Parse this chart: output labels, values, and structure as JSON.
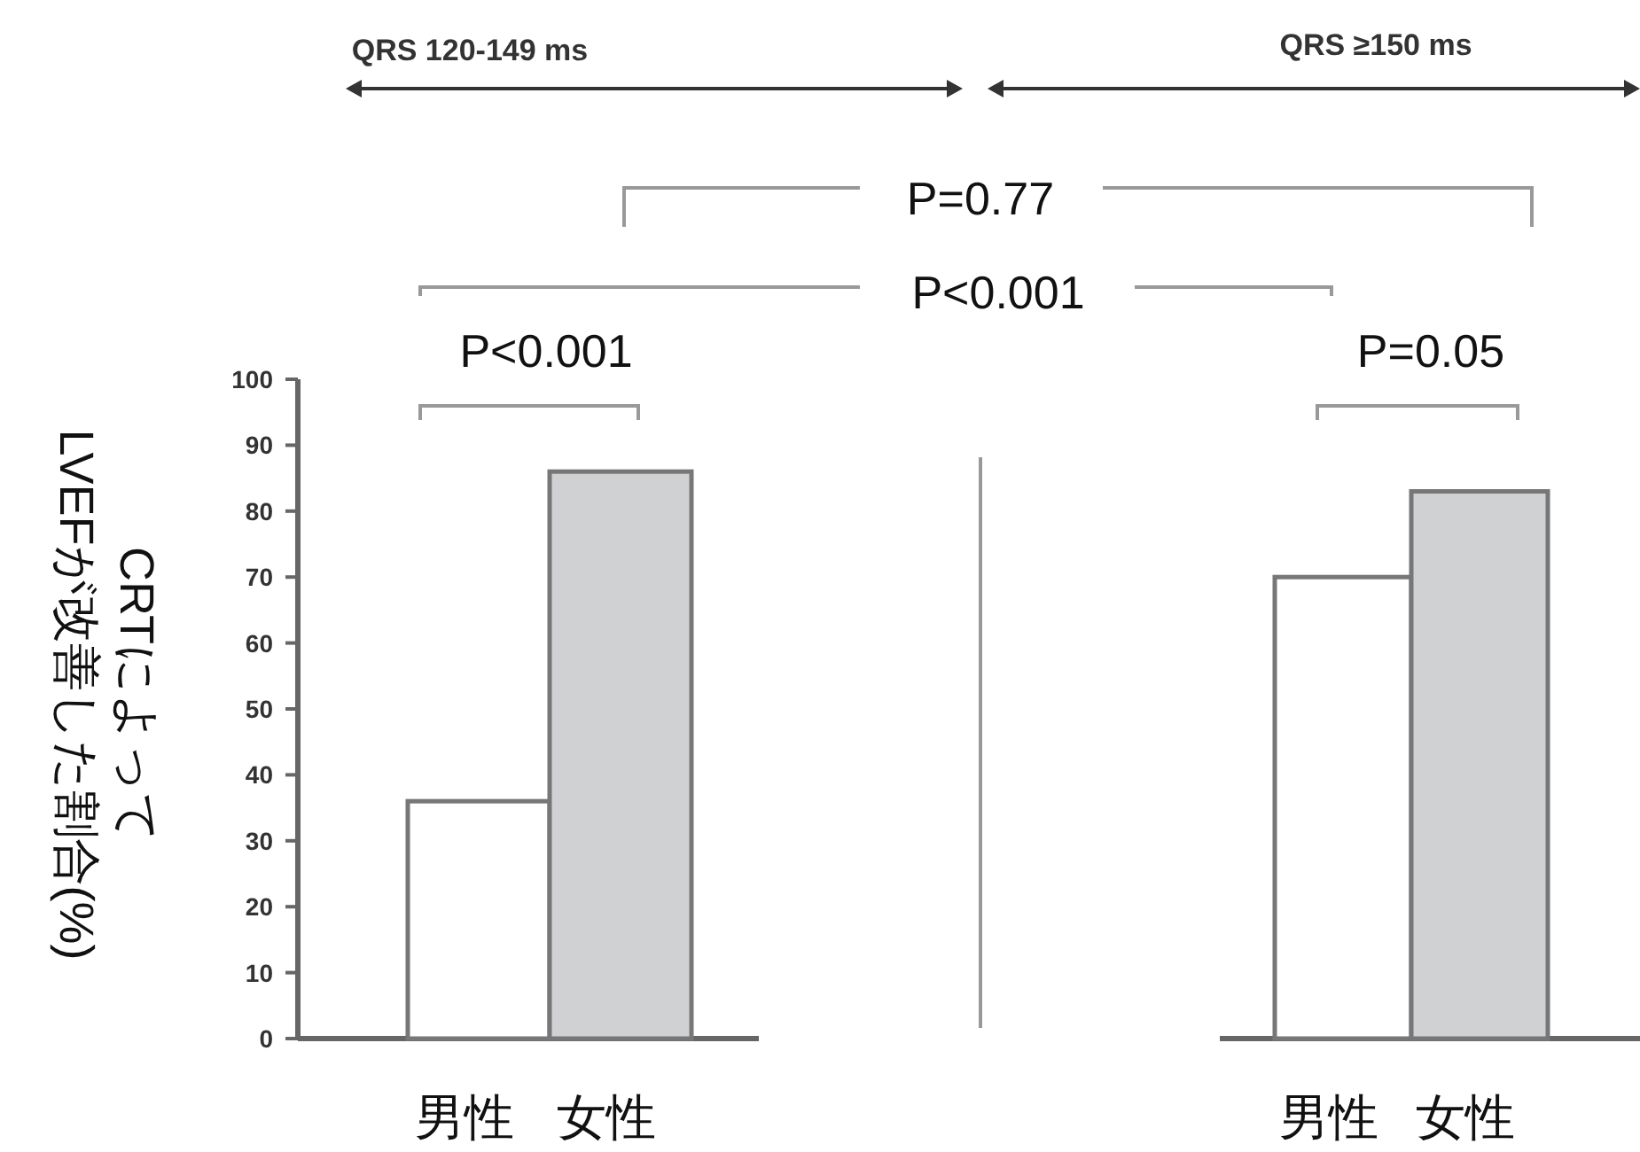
{
  "chart_data": [
    {
      "type": "bar",
      "categories": [
        "男性",
        "女性"
      ],
      "values": [
        36,
        86
      ],
      "colors": [
        "#ffffff",
        "#d0d1d3"
      ],
      "ylabel": "CRTによって\nLVEFが改善した割合(%)",
      "ylim": [
        0,
        100
      ],
      "yticks": [
        0,
        10,
        20,
        30,
        40,
        50,
        60,
        70,
        80,
        90,
        100
      ],
      "annotations": [
        "QRS 120-149 ms",
        "P<0.001",
        "P=0.77",
        "P<0.001"
      ]
    },
    {
      "type": "bar",
      "categories": [
        "男性",
        "女性"
      ],
      "values": [
        70,
        83
      ],
      "colors": [
        "#ffffff",
        "#d0d1d3"
      ],
      "ylim": [
        0,
        100
      ],
      "tick_labels": "x",
      "annotations": [
        "QRS ≥150 ms",
        "P=0.05"
      ]
    }
  ]
}
